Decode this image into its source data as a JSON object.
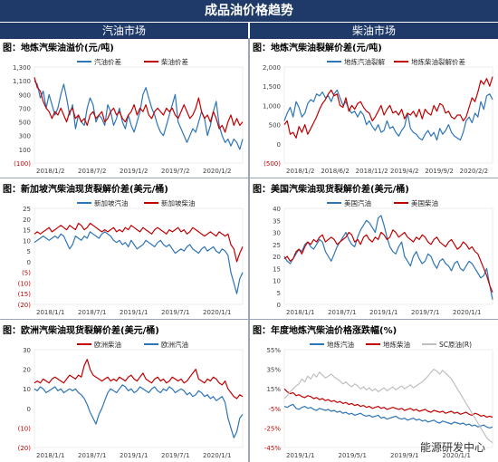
{
  "header": {
    "title": "成品油价格趋势",
    "left_section": "汽油市场",
    "right_section": "柴油市场"
  },
  "watermark": "能源研发中心",
  "chart_data": [
    {
      "id": "c1",
      "type": "line",
      "title": "图：地炼汽柴油溢价(元/吨)",
      "yticks": [
        "1,300",
        "1,100",
        "900",
        "700",
        "500",
        "300",
        "100",
        "(100)"
      ],
      "ylim": [
        -100,
        1300
      ],
      "xticks": [
        "2018/1/2",
        "2018/7/2",
        "2019/1/2",
        "2019/7/2",
        "2020/1/2"
      ],
      "series": [
        {
          "name": "汽油价差",
          "color": "#2e75b6",
          "values": [
            1100,
            1050,
            850,
            950,
            700,
            900,
            750,
            600,
            700,
            900,
            1050,
            850,
            600,
            750,
            400,
            600,
            500,
            450,
            700,
            850,
            750,
            500,
            600,
            550,
            450,
            750,
            650,
            450,
            550,
            700,
            500,
            400,
            600,
            450,
            350,
            500,
            650,
            900,
            1000,
            850,
            700,
            600,
            450,
            350,
            300,
            450,
            600,
            750,
            900,
            500,
            400,
            300,
            200,
            300,
            400,
            350,
            500,
            650,
            550,
            300,
            450,
            650,
            800,
            450,
            300,
            200,
            250,
            150,
            250,
            200,
            100,
            250
          ]
        },
        {
          "name": "柴油价差",
          "color": "#c00000",
          "values": [
            1150,
            1000,
            950,
            800,
            700,
            650,
            550,
            650,
            600,
            700,
            600,
            500,
            650,
            700,
            550,
            600,
            500,
            550,
            450,
            600,
            650,
            550,
            600,
            650,
            500,
            550,
            650,
            700,
            600,
            650,
            550,
            500,
            600,
            650,
            750,
            600,
            700,
            650,
            750,
            600,
            550,
            650,
            700,
            650,
            600,
            700,
            650,
            700,
            600,
            550,
            650,
            750,
            650,
            550,
            600,
            700,
            850,
            650,
            550,
            600,
            500,
            650,
            550,
            400,
            450,
            350,
            500,
            600,
            450,
            550,
            450,
            500
          ]
        }
      ]
    },
    {
      "id": "c2",
      "type": "line",
      "title": "图：地炼汽柴油裂解价差(元/吨)",
      "yticks": [
        "2,000",
        "1,500",
        "1,000",
        "500",
        "0",
        "(500)"
      ],
      "ylim": [
        -500,
        2000
      ],
      "xticks": [
        "2018/1/2",
        "2018/6/2",
        "2018/11/2",
        "2019/4/2",
        "2019/9/2",
        "2020/2/2"
      ],
      "series": [
        {
          "name": "地炼汽油裂解",
          "color": "#2e75b6",
          "values": [
            600,
            800,
            950,
            700,
            1100,
            950,
            700,
            800,
            1050,
            1150,
            1100,
            1300,
            1250,
            1350,
            1200,
            1250,
            1100,
            1300,
            1400,
            1200,
            1000,
            1100,
            900,
            800,
            850,
            700,
            850,
            750,
            500,
            600,
            450,
            350,
            500,
            300,
            350,
            600,
            400,
            450,
            300,
            200,
            350,
            450,
            800,
            400,
            300,
            250,
            150,
            100,
            250,
            350,
            200,
            300,
            100,
            400,
            250,
            350,
            500,
            300,
            200,
            150,
            100,
            300,
            600,
            700,
            550,
            800,
            700,
            1100,
            900,
            1250,
            1300,
            1150
          ]
        },
        {
          "name": "地炼柴油裂解价差",
          "color": "#c00000",
          "values": [
            500,
            600,
            250,
            300,
            150,
            450,
            300,
            500,
            250,
            400,
            550,
            700,
            900,
            1050,
            1150,
            1300,
            1400,
            1250,
            1300,
            1000,
            950,
            1200,
            850,
            1000,
            900,
            1050,
            1100,
            950,
            850,
            800,
            600,
            700,
            850,
            1000,
            750,
            900,
            1000,
            800,
            850,
            750,
            900,
            650,
            800,
            750,
            850,
            700,
            900,
            650,
            900,
            800,
            750,
            1000,
            850,
            1050,
            1000,
            800,
            850,
            700,
            650,
            750,
            750,
            600,
            700,
            950,
            1200,
            1100,
            1350,
            1650,
            1550,
            1700,
            1500,
            1750
          ]
        }
      ]
    },
    {
      "id": "c3",
      "type": "line",
      "title": "图：新加坡汽柴油现货裂解价差(美元/桶)",
      "yticks": [
        "25",
        "20",
        "15",
        "10",
        "5",
        "0",
        "(5)",
        "(10)",
        "(15)",
        "(20)"
      ],
      "ylim": [
        -20,
        25
      ],
      "xticks": [
        "2018/1/1",
        "2018/7/1",
        "2019/1/1",
        "2019/7/1",
        "2020/1/1"
      ],
      "series": [
        {
          "name": "新加坡汽油",
          "color": "#2e75b6",
          "values": [
            9,
            10,
            11,
            12,
            11,
            10,
            11,
            12,
            11,
            13,
            12,
            9,
            6,
            8,
            12,
            11,
            10,
            12,
            11,
            14,
            13,
            12,
            11,
            13,
            14,
            13,
            12,
            10,
            9,
            10,
            8,
            9,
            7,
            10,
            8,
            6,
            7,
            8,
            10,
            9,
            8,
            7,
            9,
            10,
            8,
            7,
            8,
            6,
            4,
            5,
            6,
            5,
            7,
            8,
            6,
            5,
            4,
            6,
            7,
            5,
            6,
            7,
            5,
            4,
            6,
            5,
            3,
            -5,
            -10,
            -15,
            -8,
            -5
          ]
        },
        {
          "name": "新加坡柴油",
          "color": "#c00000",
          "values": [
            13,
            14,
            13,
            14,
            15,
            16,
            14,
            15,
            16,
            17,
            16,
            15,
            17,
            16,
            15,
            18,
            17,
            15,
            16,
            18,
            17,
            16,
            15,
            14,
            15,
            14,
            15,
            16,
            14,
            15,
            14,
            16,
            15,
            17,
            16,
            15,
            14,
            16,
            15,
            14,
            13,
            15,
            16,
            15,
            14,
            13,
            15,
            14,
            15,
            16,
            14,
            15,
            13,
            14,
            16,
            15,
            14,
            13,
            12,
            13,
            14,
            13,
            12,
            14,
            13,
            12,
            13,
            8,
            6,
            0,
            4,
            7
          ]
        }
      ]
    },
    {
      "id": "c4",
      "type": "line",
      "title": "图：美国汽柴油现货裂解价差(美元/桶)",
      "yticks": [
        "40",
        "35",
        "30",
        "25",
        "20",
        "15",
        "10",
        "5",
        "0"
      ],
      "ylim": [
        0,
        40
      ],
      "xticks": [
        "2018/1/1",
        "2018/7/1",
        "2019/1/1",
        "2019/7/1",
        "2020/1/1"
      ],
      "series": [
        {
          "name": "美国汽油",
          "color": "#2e75b6",
          "values": [
            20,
            18,
            17,
            19,
            21,
            23,
            22,
            25,
            26,
            24,
            23,
            25,
            27,
            26,
            22,
            20,
            18,
            21,
            24,
            26,
            28,
            30,
            27,
            25,
            24,
            28,
            31,
            33,
            35,
            34,
            32,
            30,
            36,
            37,
            33,
            28,
            24,
            22,
            21,
            24,
            26,
            20,
            18,
            16,
            20,
            22,
            19,
            17,
            18,
            21,
            20,
            17,
            15,
            18,
            19,
            17,
            16,
            14,
            17,
            18,
            15,
            14,
            16,
            18,
            17,
            15,
            13,
            11,
            12,
            15,
            8,
            2
          ]
        },
        {
          "name": "美国柴油",
          "color": "#c00000",
          "values": [
            19,
            20,
            18,
            19,
            22,
            23,
            21,
            24,
            26,
            25,
            27,
            26,
            28,
            29,
            26,
            27,
            28,
            27,
            25,
            26,
            27,
            28,
            30,
            29,
            26,
            27,
            25,
            28,
            29,
            27,
            26,
            28,
            27,
            30,
            29,
            27,
            28,
            31,
            30,
            28,
            29,
            30,
            28,
            27,
            26,
            28,
            27,
            29,
            28,
            26,
            25,
            27,
            28,
            26,
            25,
            24,
            26,
            27,
            25,
            23,
            24,
            26,
            25,
            23,
            24,
            22,
            21,
            18,
            15,
            12,
            8,
            5
          ]
        }
      ]
    },
    {
      "id": "c5",
      "type": "line",
      "title": "图：欧洲汽柴油现货裂解价差(美元/桶)",
      "yticks": [
        "30",
        "20",
        "10",
        "0",
        "(10)",
        "(20)"
      ],
      "ylim": [
        -20,
        30
      ],
      "xticks": [
        "2018/1/1",
        "2018/7/1",
        "2019/1/1",
        "2019/7/1",
        "2020/1/1"
      ],
      "series": [
        {
          "name": "欧洲柴油",
          "color": "#c00000",
          "values": [
            13,
            14,
            13,
            15,
            14,
            13,
            15,
            16,
            15,
            14,
            13,
            15,
            17,
            16,
            15,
            17,
            16,
            22,
            25,
            20,
            17,
            16,
            15,
            14,
            15,
            16,
            14,
            15,
            14,
            16,
            15,
            14,
            16,
            17,
            15,
            14,
            16,
            18,
            15,
            14,
            13,
            15,
            16,
            14,
            15,
            13,
            14,
            16,
            15,
            14,
            15,
            13,
            14,
            16,
            18,
            20,
            15,
            14,
            13,
            15,
            14,
            16,
            15,
            13,
            12,
            14,
            10,
            8,
            6,
            5,
            7,
            6
          ]
        },
        {
          "name": "欧洲汽油",
          "color": "#2e75b6",
          "values": [
            10,
            9,
            11,
            10,
            8,
            9,
            10,
            11,
            9,
            10,
            8,
            9,
            10,
            9,
            10,
            8,
            7,
            5,
            2,
            -2,
            -5,
            -8,
            -3,
            0,
            4,
            8,
            10,
            9,
            8,
            10,
            12,
            11,
            9,
            10,
            8,
            9,
            11,
            10,
            9,
            8,
            10,
            11,
            9,
            8,
            10,
            9,
            11,
            10,
            8,
            9,
            10,
            9,
            7,
            8,
            6,
            7,
            9,
            8,
            6,
            7,
            5,
            6,
            4,
            5,
            6,
            3,
            -5,
            -10,
            -15,
            -12,
            -5,
            -3
          ]
        }
      ]
    },
    {
      "id": "c6",
      "type": "line",
      "title": "图：年度地炼汽柴油价格涨跌幅(%)",
      "yticks": [
        "55%",
        "35%",
        "15%",
        "-5%",
        "-25%",
        "-45%"
      ],
      "ylim": [
        -45,
        55
      ],
      "xticks": [
        "2019/1/1",
        "2019/5/1",
        "2019/9/1",
        "2020/1/1"
      ],
      "series": [
        {
          "name": "地炼汽油",
          "color": "#2e75b6",
          "values": [
            -3,
            -4,
            -2,
            -1,
            -5,
            -6,
            -4,
            -3,
            -5,
            -4,
            -6,
            -7,
            -5,
            -6,
            -7,
            -6,
            -8,
            -7,
            -9,
            -8,
            -10,
            -9,
            -11,
            -10,
            -12,
            -11,
            -10,
            -12,
            -13,
            -12,
            -14,
            -13,
            -12,
            -15,
            -14,
            -16,
            -15,
            -14,
            -13,
            -15,
            -16,
            -15,
            -17,
            -16,
            -15,
            -17,
            -16,
            -18,
            -17,
            -19,
            -18,
            -17,
            -19,
            -20,
            -18,
            -19,
            -20,
            -21,
            -19,
            -20,
            -21,
            -20,
            -22,
            -21,
            -23,
            -22,
            -24,
            -23,
            -22,
            -24,
            -25,
            -24
          ]
        },
        {
          "name": "地炼柴油",
          "color": "#c00000",
          "values": [
            15,
            12,
            10,
            11,
            8,
            9,
            7,
            6,
            8,
            7,
            5,
            6,
            4,
            5,
            3,
            4,
            2,
            3,
            1,
            2,
            0,
            1,
            -1,
            0,
            -2,
            -1,
            -3,
            -2,
            -4,
            -3,
            -5,
            -4,
            -3,
            -5,
            -4,
            -6,
            -5,
            -4,
            -5,
            -6,
            -5,
            -7,
            -6,
            -5,
            -7,
            -6,
            -8,
            -7,
            -6,
            -8,
            -9,
            -7,
            -8,
            -9,
            -8,
            -10,
            -9,
            -8,
            -10,
            -9,
            -11,
            -10,
            -9,
            -11,
            -12,
            -10,
            -11,
            -13,
            -12,
            -14,
            -13,
            -14
          ]
        },
        {
          "name": "SC原油(R)",
          "color": "#bfbfbf",
          "values": [
            5,
            8,
            12,
            15,
            18,
            20,
            25,
            22,
            28,
            25,
            30,
            27,
            32,
            29,
            26,
            28,
            30,
            27,
            25,
            23,
            20,
            22,
            19,
            17,
            20,
            18,
            15,
            17,
            14,
            16,
            13,
            15,
            12,
            14,
            16,
            13,
            15,
            17,
            14,
            16,
            18,
            15,
            17,
            19,
            16,
            18,
            20,
            22,
            25,
            28,
            32,
            35,
            33,
            30,
            34,
            31,
            28,
            25,
            20,
            15,
            10,
            5,
            0,
            -5,
            -10,
            -15,
            -20,
            -25,
            -30,
            -35,
            -38,
            -40
          ]
        }
      ]
    }
  ]
}
